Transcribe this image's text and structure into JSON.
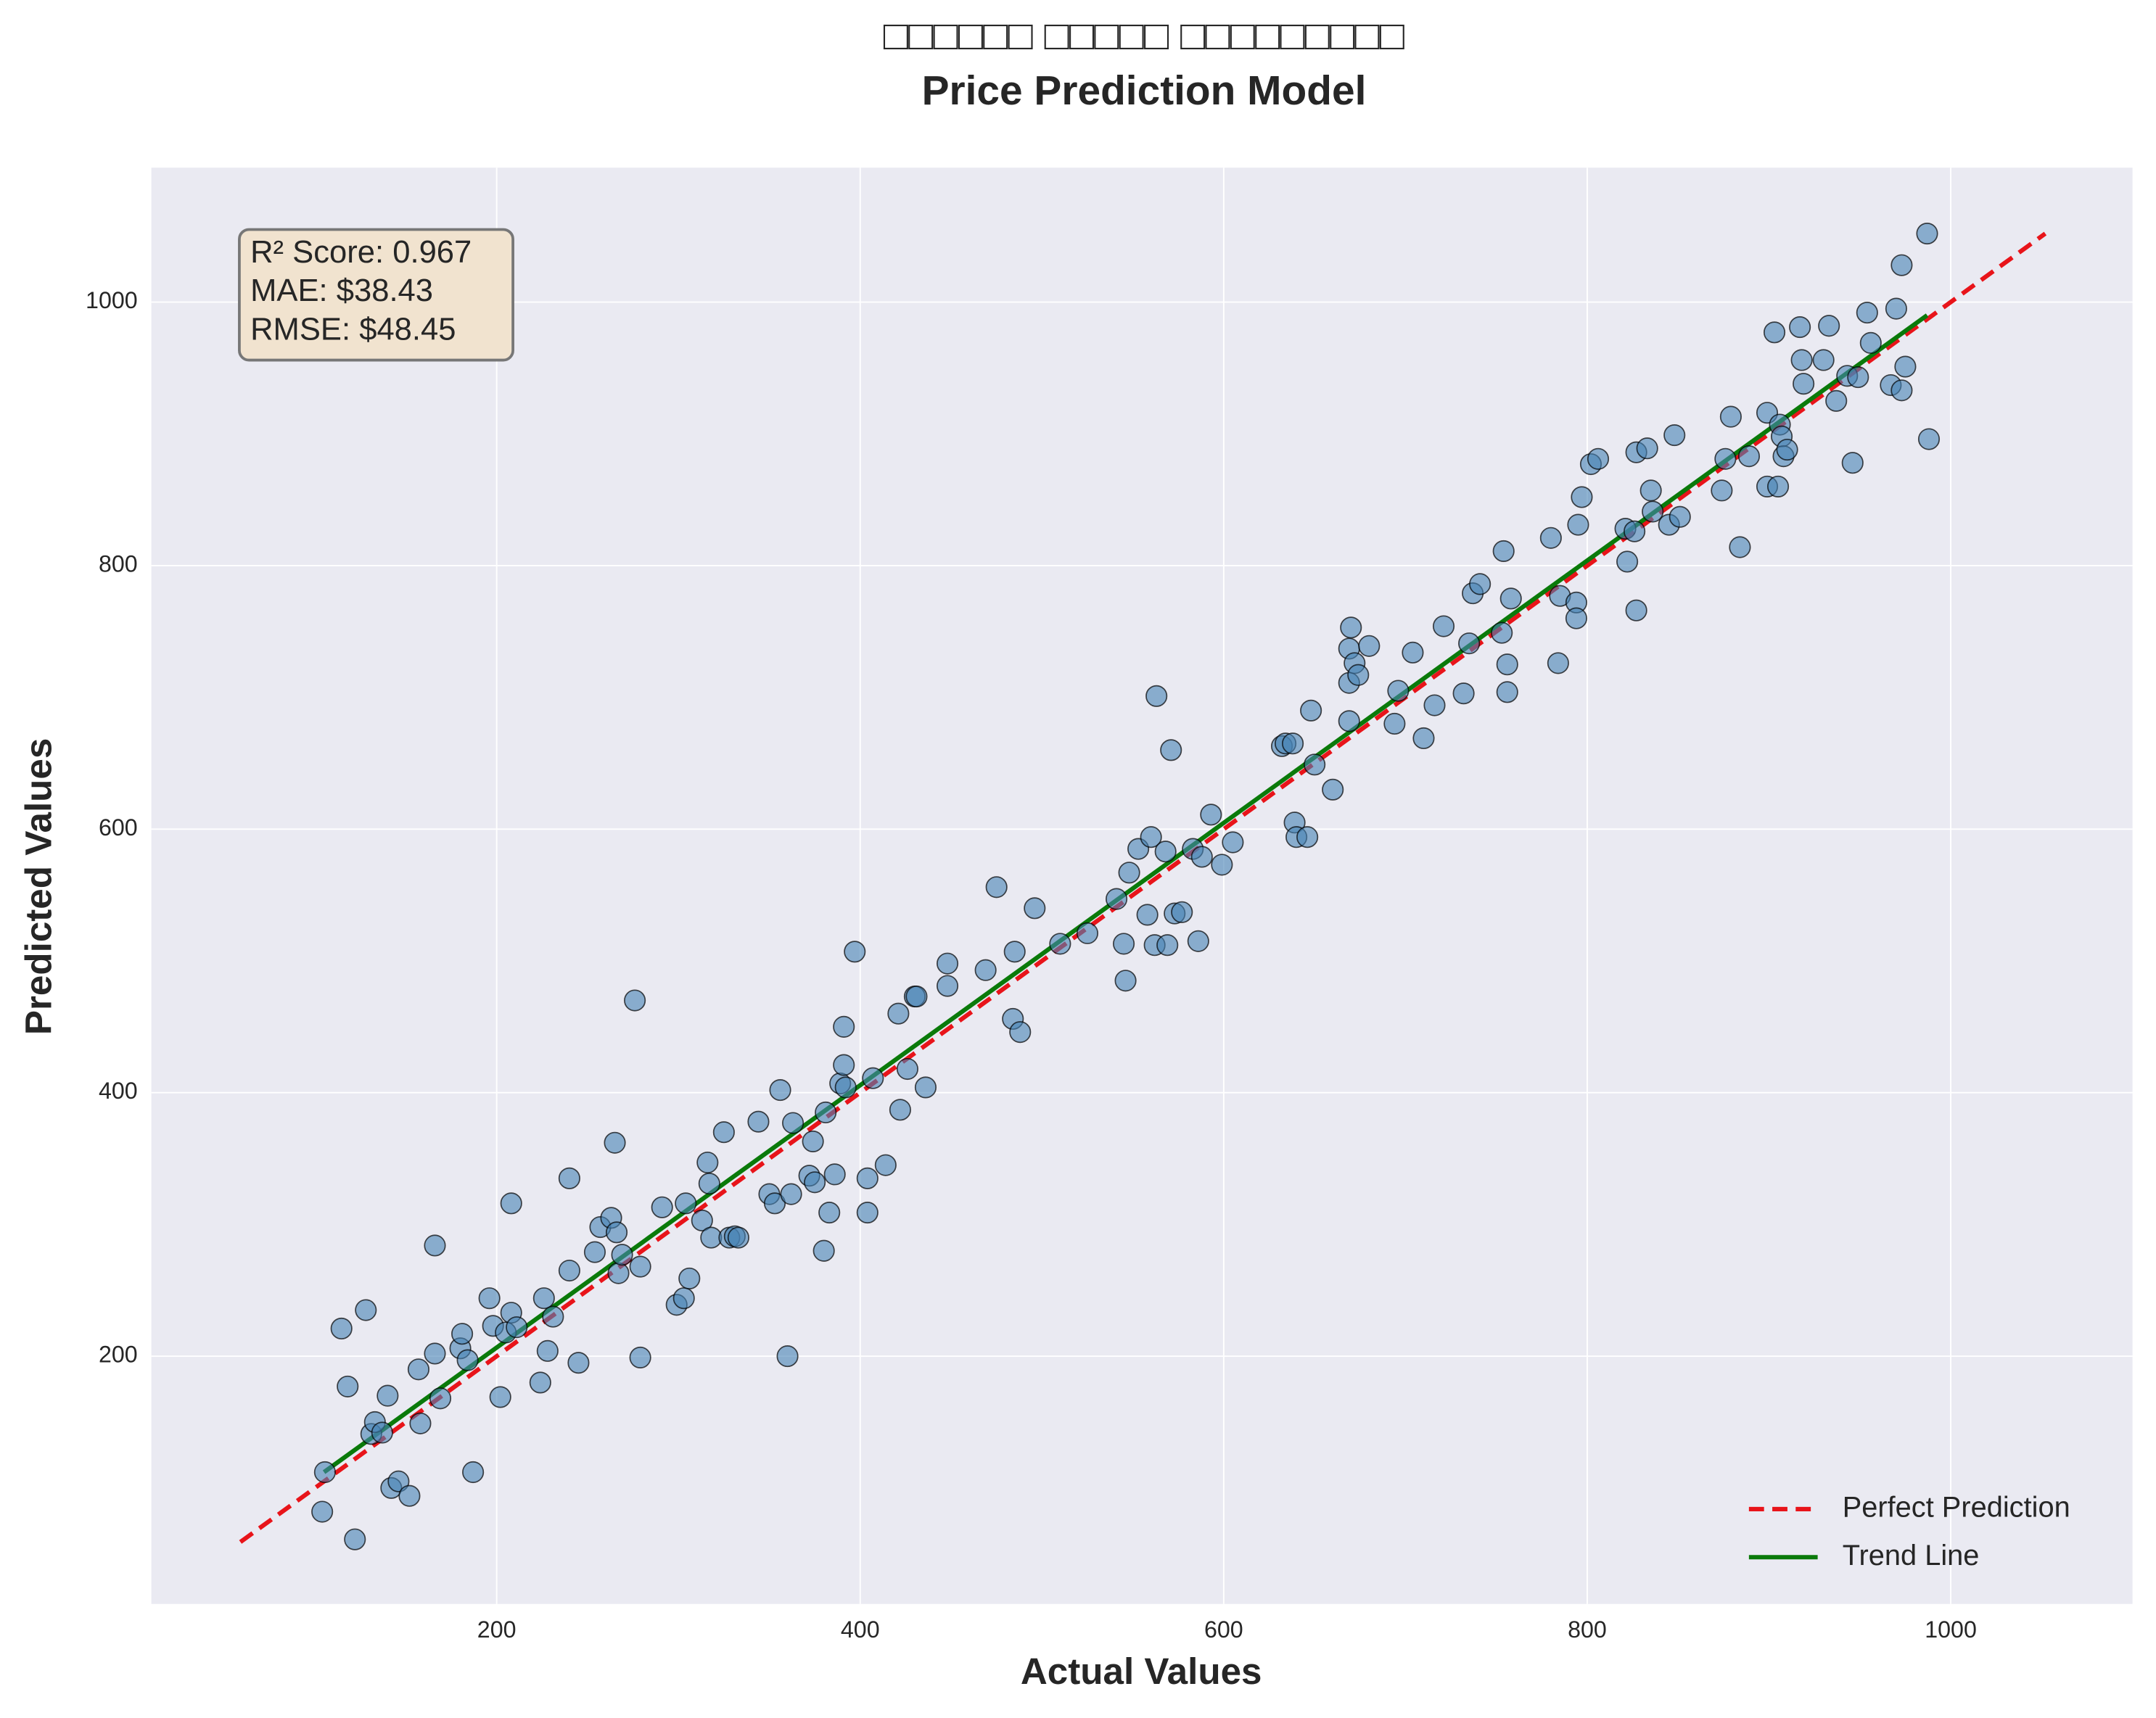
{
  "chart_data": {
    "type": "scatter",
    "title": "□□□□□□ □□□□□ □□□□□□□□□",
    "subtitle": "Price Prediction Model",
    "xlabel": "Actual Values",
    "ylabel": "Predicted Values",
    "xlim": [
      10,
      1100
    ],
    "ylim": [
      12,
      1102
    ],
    "xticks": [
      200,
      400,
      600,
      800,
      1000
    ],
    "yticks": [
      200,
      400,
      600,
      800,
      1000
    ],
    "grid": true,
    "legend": "lower right",
    "annotation": [
      "R² Score: 0.967",
      "MAE: $38.43",
      "RMSE: $48.45"
    ],
    "series": [
      {
        "name": "Perfect Prediction",
        "color": "#e8141a",
        "linestyle": "dashed",
        "x": [
          59,
          1052
        ],
        "y": [
          59,
          1052
        ]
      },
      {
        "name": "Trend Line",
        "color": "#0a7a0a",
        "linestyle": "solid",
        "x": [
          105,
          987
        ],
        "y": [
          112,
          990
        ]
      }
    ],
    "points": {
      "color": "#4682b4",
      "x": [
        105.5,
        104,
        114.6,
        118,
        122,
        128,
        131,
        133,
        137,
        140,
        142,
        146,
        152,
        157,
        158,
        166,
        166,
        169,
        180,
        181,
        184,
        187,
        196,
        198,
        202,
        205,
        208,
        208,
        211,
        224,
        226,
        228,
        231,
        240,
        240,
        245,
        254,
        257,
        263,
        265,
        266,
        267,
        269,
        276,
        279,
        279,
        291,
        299,
        303,
        304,
        306,
        313,
        316,
        317,
        318,
        325,
        328,
        331,
        333,
        344,
        350,
        353,
        356,
        360,
        362,
        363,
        372,
        374,
        375,
        380,
        381,
        383,
        386,
        389,
        391,
        391,
        392,
        397,
        404,
        404,
        407,
        414,
        421,
        422,
        426,
        430,
        431,
        436,
        448,
        448,
        469,
        475,
        484,
        485,
        488,
        496,
        510,
        525,
        541,
        545,
        546,
        548,
        553,
        558,
        560,
        562,
        563,
        568,
        569,
        571,
        573,
        577,
        583,
        586,
        588,
        593,
        599,
        605,
        632,
        634,
        638,
        639,
        640,
        646,
        648,
        650,
        660,
        669,
        669,
        669,
        670,
        672,
        674,
        680,
        694,
        696,
        704,
        710,
        716,
        721,
        732,
        735,
        737,
        741,
        753,
        754,
        756,
        756,
        758,
        780,
        784,
        785,
        794,
        794,
        795,
        797,
        802,
        806,
        821,
        822,
        826,
        827,
        827,
        833,
        835,
        836,
        845,
        848,
        851,
        874,
        876,
        879,
        884,
        889,
        899,
        899,
        903,
        905,
        906,
        907,
        908,
        910,
        917,
        918,
        919,
        930,
        933,
        937,
        943,
        946,
        949,
        954,
        956,
        967,
        970,
        973,
        973,
        975,
        987,
        988
      ],
      "y": [
        112,
        82,
        221,
        177,
        61,
        235,
        141,
        150,
        142,
        170,
        100,
        105,
        94,
        190,
        149,
        284,
        202,
        168,
        206,
        217,
        197,
        112,
        244,
        223,
        169,
        218,
        316,
        233,
        222,
        180,
        244,
        204,
        230,
        335,
        265,
        195,
        279,
        298,
        305,
        362,
        294,
        263,
        277,
        470,
        199,
        268,
        313,
        239,
        244,
        316,
        259,
        303,
        347,
        331,
        290,
        370,
        290,
        291,
        290,
        378,
        323,
        316,
        402,
        200,
        323,
        377,
        337,
        363,
        332,
        280,
        385,
        309,
        338,
        407,
        421,
        450,
        404,
        507,
        309,
        335,
        411,
        345,
        460,
        387,
        418,
        473,
        473,
        404,
        481,
        498,
        493,
        556,
        456,
        507,
        446,
        540,
        513,
        521,
        547,
        513,
        485,
        567,
        585,
        535,
        594,
        512,
        701,
        583,
        512,
        660,
        536,
        537,
        585,
        515,
        579,
        611,
        573,
        590,
        663,
        665,
        665,
        605,
        594,
        594,
        690,
        649,
        630,
        682,
        711,
        737,
        753,
        726,
        717,
        739,
        680,
        705,
        734,
        669,
        694,
        754,
        703,
        741,
        779,
        786,
        749,
        811,
        725,
        704,
        775,
        821,
        726,
        777,
        772,
        760,
        831,
        852,
        877,
        881,
        828,
        803,
        826,
        886,
        766,
        889,
        857,
        841,
        831,
        899,
        837,
        857,
        881,
        913,
        814,
        883,
        916,
        860,
        977,
        860,
        907,
        898,
        883,
        888,
        981,
        956,
        938,
        956,
        982,
        925,
        944,
        878,
        943,
        992,
        969,
        937,
        995,
        1028,
        933,
        951,
        1052,
        896
      ]
    }
  }
}
